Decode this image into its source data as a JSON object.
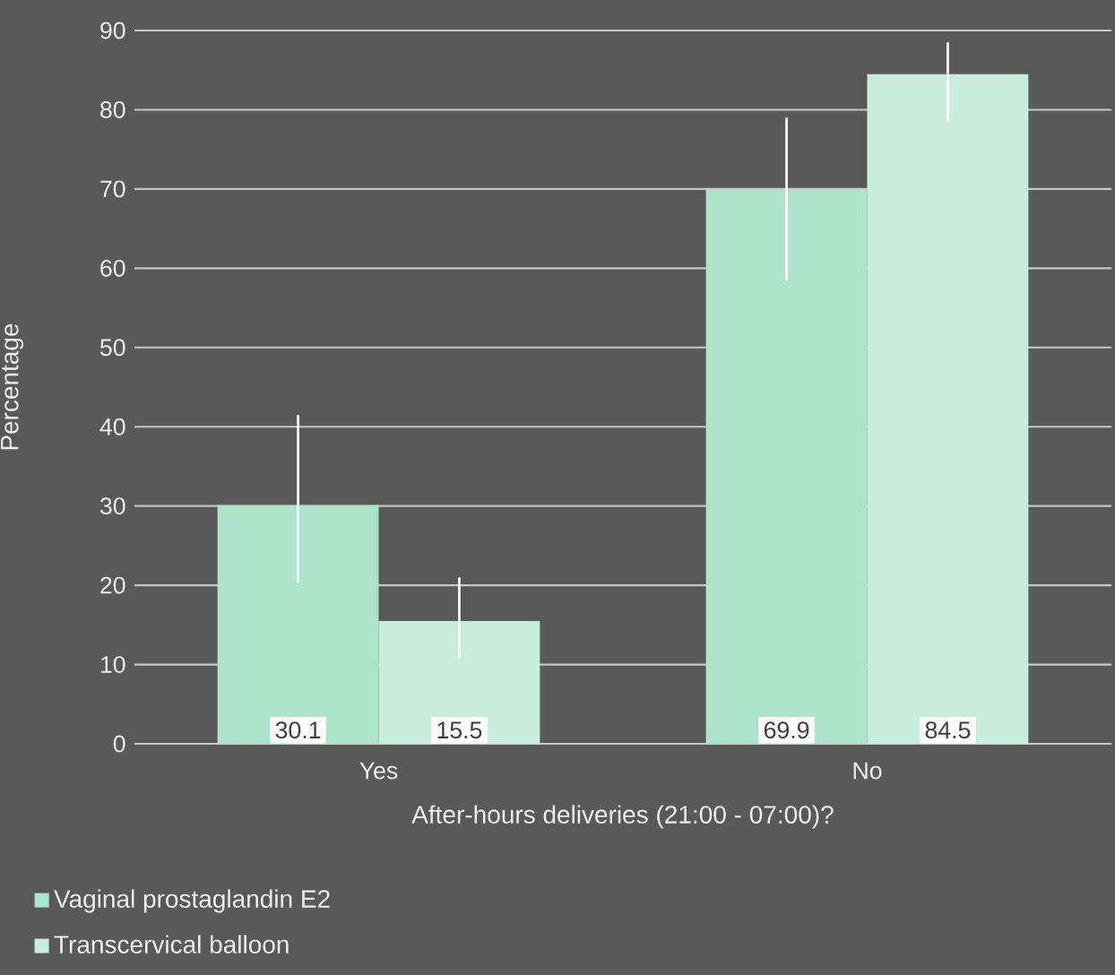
{
  "chart_data": {
    "type": "bar",
    "xlabel": "After-hours deliveries (21:00 - 07:00)?",
    "ylabel": "Percentage",
    "categories": [
      "Yes",
      "No"
    ],
    "series": [
      {
        "name": "Vaginal prostaglandin E2",
        "color": "#aee3cb",
        "values": [
          30.1,
          69.9
        ],
        "errors": [
          [
            20.3,
            41.5
          ],
          [
            58.5,
            79.0
          ]
        ]
      },
      {
        "name": "Transcervical balloon",
        "color": "#c9eddc",
        "values": [
          15.5,
          84.5
        ],
        "errors": [
          [
            10.8,
            21.0
          ],
          [
            78.5,
            88.5
          ]
        ]
      }
    ],
    "ylim": [
      0,
      90
    ],
    "yticks": [
      0,
      10,
      20,
      30,
      40,
      50,
      60,
      70,
      80,
      90
    ],
    "grid": "y",
    "legend": "bottom left",
    "data_labels": true
  }
}
